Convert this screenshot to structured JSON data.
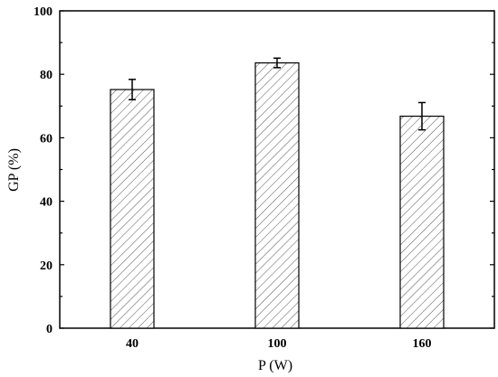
{
  "chart_data": {
    "type": "bar",
    "categories": [
      "40",
      "100",
      "160"
    ],
    "values": [
      75.2,
      83.6,
      66.8
    ],
    "errors": [
      3.2,
      1.5,
      4.3
    ],
    "title": "",
    "xlabel": "P (W)",
    "ylabel": "GP (%)",
    "ylim": [
      0,
      100
    ],
    "yticks": [
      "0",
      "20",
      "40",
      "60",
      "80",
      "100"
    ],
    "bar_fill": "hatched",
    "grid": false,
    "colors": {
      "axis": "#000000",
      "bar_edge": "#000000",
      "hatch": "#555555",
      "background": "#ffffff"
    }
  }
}
